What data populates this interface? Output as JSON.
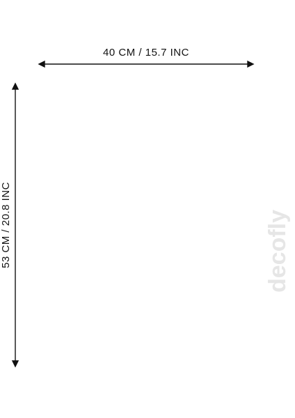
{
  "width_label": "40 CM / 15.7 INC",
  "height_label": "53 CM / 20.8 INC",
  "watermark": "decofly"
}
